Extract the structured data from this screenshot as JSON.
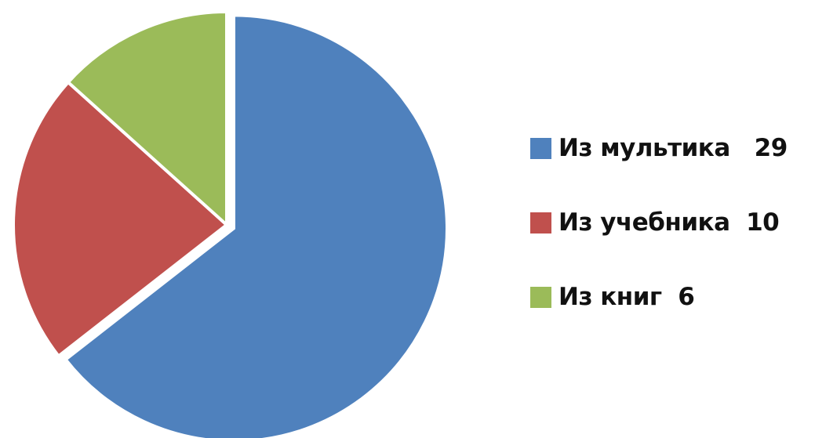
{
  "chart_data": {
    "type": "pie",
    "slices": [
      {
        "label": "Из мультика",
        "value": 29,
        "display": "Из мультика   29",
        "color": "#4F81BD"
      },
      {
        "label": "Из учебника",
        "value": 10,
        "display": "Из учебника  10",
        "color": "#C0504D"
      },
      {
        "label": "Из книг",
        "value": 6,
        "display": "Из книг  6",
        "color": "#9BBB59"
      }
    ],
    "start_angle_deg": 0,
    "direction": "clockwise",
    "exploded_slice": "Из мультика",
    "legend_position": "right"
  }
}
